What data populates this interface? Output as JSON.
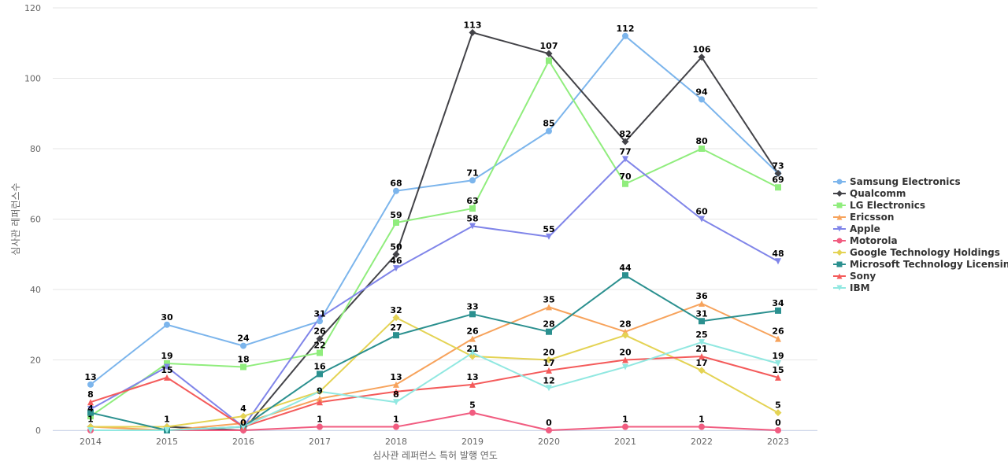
{
  "chart_data": {
    "type": "line",
    "title": "",
    "xlabel": "심사관 레퍼런스 특허 발행 연도",
    "ylabel": "심사관 레퍼런스수",
    "ylim": [
      0,
      120
    ],
    "yticks": [
      "0",
      "20",
      "40",
      "60",
      "80",
      "100",
      "120"
    ],
    "x": [
      "2014",
      "2015",
      "2016",
      "2017",
      "2018",
      "2019",
      "2020",
      "2021",
      "2022",
      "2023"
    ],
    "grid": true,
    "legend_position": "right",
    "series": [
      {
        "name": "Samsung Electronics",
        "color": "#7cb5ec",
        "marker": "circle",
        "values": [
          13,
          30,
          24,
          31,
          68,
          71,
          85,
          112,
          94,
          73
        ]
      },
      {
        "name": "Qualcomm",
        "color": "#434348",
        "marker": "diamond",
        "values": [
          1,
          1,
          0,
          26,
          50,
          113,
          107,
          82,
          106,
          73
        ]
      },
      {
        "name": "LG Electronics",
        "color": "#90ed7d",
        "marker": "square",
        "values": [
          4,
          19,
          18,
          22,
          59,
          63,
          105,
          70,
          80,
          69
        ]
      },
      {
        "name": "Ericsson",
        "color": "#f7a35c",
        "marker": "triangle",
        "values": [
          1,
          0,
          2,
          9,
          13,
          26,
          35,
          28,
          36,
          26
        ]
      },
      {
        "name": "Apple",
        "color": "#8085e9",
        "marker": "triangle-down",
        "values": [
          6,
          18,
          1,
          32,
          46,
          58,
          55,
          77,
          60,
          48
        ]
      },
      {
        "name": "Motorola",
        "color": "#f15c80",
        "marker": "circle",
        "values": [
          0,
          0,
          0,
          1,
          1,
          5,
          0,
          1,
          1,
          0
        ]
      },
      {
        "name": "Google Technology Holdings",
        "color": "#e4d354",
        "marker": "diamond",
        "values": [
          1,
          1,
          4,
          11,
          32,
          21,
          20,
          27,
          17,
          5
        ]
      },
      {
        "name": "Microsoft Technology Licensing",
        "color": "#2b908f",
        "marker": "square",
        "values": [
          5,
          0,
          1,
          16,
          27,
          33,
          28,
          44,
          31,
          34
        ]
      },
      {
        "name": "Sony",
        "color": "#f45b5b",
        "marker": "triangle",
        "values": [
          8,
          15,
          1,
          8,
          11,
          13,
          17,
          20,
          21,
          15
        ]
      },
      {
        "name": "IBM",
        "color": "#91e8e1",
        "marker": "triangle-down",
        "values": [
          0,
          0,
          1,
          11,
          8,
          22,
          12,
          18,
          25,
          19
        ]
      }
    ],
    "data_labels": [
      {
        "x": "2014",
        "value": "13",
        "series": "Samsung Electronics"
      },
      {
        "x": "2014",
        "value": "8",
        "series": "Sony"
      },
      {
        "x": "2014",
        "value": "4",
        "series": "LG Electronics"
      },
      {
        "x": "2014",
        "value": "1",
        "series": "Ericsson"
      },
      {
        "x": "2015",
        "value": "30",
        "series": "Samsung Electronics"
      },
      {
        "x": "2015",
        "value": "19",
        "series": "LG Electronics"
      },
      {
        "x": "2015",
        "value": "15",
        "series": "Sony"
      },
      {
        "x": "2015",
        "value": "1",
        "series": "Qualcomm"
      },
      {
        "x": "2016",
        "value": "24",
        "series": "Samsung Electronics"
      },
      {
        "x": "2016",
        "value": "18",
        "series": "LG Electronics"
      },
      {
        "x": "2016",
        "value": "4",
        "series": "Google Technology Holdings"
      },
      {
        "x": "2016",
        "value": "0",
        "series": "Qualcomm"
      },
      {
        "x": "2017",
        "value": "31",
        "series": "Samsung Electronics"
      },
      {
        "x": "2017",
        "value": "26",
        "series": "Qualcomm"
      },
      {
        "x": "2017",
        "value": "22",
        "series": "LG Electronics"
      },
      {
        "x": "2017",
        "value": "16",
        "series": "Microsoft Technology Licensing"
      },
      {
        "x": "2017",
        "value": "9",
        "series": "Ericsson"
      },
      {
        "x": "2017",
        "value": "1",
        "series": "Motorola"
      },
      {
        "x": "2018",
        "value": "68",
        "series": "Samsung Electronics"
      },
      {
        "x": "2018",
        "value": "59",
        "series": "LG Electronics"
      },
      {
        "x": "2018",
        "value": "50",
        "series": "Qualcomm"
      },
      {
        "x": "2018",
        "value": "46",
        "series": "Apple"
      },
      {
        "x": "2018",
        "value": "32",
        "series": "Google Technology Holdings"
      },
      {
        "x": "2018",
        "value": "27",
        "series": "Microsoft Technology Licensing"
      },
      {
        "x": "2018",
        "value": "13",
        "series": "Ericsson"
      },
      {
        "x": "2018",
        "value": "8",
        "series": "IBM"
      },
      {
        "x": "2018",
        "value": "1",
        "series": "Motorola"
      },
      {
        "x": "2019",
        "value": "113",
        "series": "Qualcomm"
      },
      {
        "x": "2019",
        "value": "71",
        "series": "Samsung Electronics"
      },
      {
        "x": "2019",
        "value": "63",
        "series": "LG Electronics"
      },
      {
        "x": "2019",
        "value": "58",
        "series": "Apple"
      },
      {
        "x": "2019",
        "value": "33",
        "series": "Microsoft Technology Licensing"
      },
      {
        "x": "2019",
        "value": "26",
        "series": "Ericsson"
      },
      {
        "x": "2019",
        "value": "21",
        "series": "Google Technology Holdings"
      },
      {
        "x": "2019",
        "value": "13",
        "series": "Sony"
      },
      {
        "x": "2019",
        "value": "5",
        "series": "Motorola"
      },
      {
        "x": "2020",
        "value": "107",
        "series": "Qualcomm"
      },
      {
        "x": "2020",
        "value": "85",
        "series": "Samsung Electronics"
      },
      {
        "x": "2020",
        "value": "55",
        "series": "Apple"
      },
      {
        "x": "2020",
        "value": "35",
        "series": "Ericsson"
      },
      {
        "x": "2020",
        "value": "28",
        "series": "Microsoft Technology Licensing"
      },
      {
        "x": "2020",
        "value": "20",
        "series": "Google Technology Holdings"
      },
      {
        "x": "2020",
        "value": "17",
        "series": "Sony"
      },
      {
        "x": "2020",
        "value": "12",
        "series": "IBM"
      },
      {
        "x": "2020",
        "value": "0",
        "series": "Motorola"
      },
      {
        "x": "2021",
        "value": "112",
        "series": "Samsung Electronics"
      },
      {
        "x": "2021",
        "value": "82",
        "series": "Qualcomm"
      },
      {
        "x": "2021",
        "value": "77",
        "series": "Apple"
      },
      {
        "x": "2021",
        "value": "70",
        "series": "LG Electronics"
      },
      {
        "x": "2021",
        "value": "44",
        "series": "Microsoft Technology Licensing"
      },
      {
        "x": "2021",
        "value": "28",
        "series": "Ericsson"
      },
      {
        "x": "2021",
        "value": "20",
        "series": "Sony"
      },
      {
        "x": "2021",
        "value": "1",
        "series": "Motorola"
      },
      {
        "x": "2022",
        "value": "106",
        "series": "Qualcomm"
      },
      {
        "x": "2022",
        "value": "94",
        "series": "Samsung Electronics"
      },
      {
        "x": "2022",
        "value": "80",
        "series": "LG Electronics"
      },
      {
        "x": "2022",
        "value": "60",
        "series": "Apple"
      },
      {
        "x": "2022",
        "value": "36",
        "series": "Ericsson"
      },
      {
        "x": "2022",
        "value": "31",
        "series": "Microsoft Technology Licensing"
      },
      {
        "x": "2022",
        "value": "25",
        "series": "IBM"
      },
      {
        "x": "2022",
        "value": "21",
        "series": "Sony"
      },
      {
        "x": "2022",
        "value": "17",
        "series": "Google Technology Holdings"
      },
      {
        "x": "2022",
        "value": "1",
        "series": "Motorola"
      },
      {
        "x": "2023",
        "value": "73",
        "series": "Samsung Electronics"
      },
      {
        "x": "2023",
        "value": "69",
        "series": "LG Electronics"
      },
      {
        "x": "2023",
        "value": "48",
        "series": "Apple"
      },
      {
        "x": "2023",
        "value": "34",
        "series": "Microsoft Technology Licensing"
      },
      {
        "x": "2023",
        "value": "26",
        "series": "Ericsson"
      },
      {
        "x": "2023",
        "value": "19",
        "series": "IBM"
      },
      {
        "x": "2023",
        "value": "15",
        "series": "Sony"
      },
      {
        "x": "2023",
        "value": "5",
        "series": "Google Technology Holdings"
      },
      {
        "x": "2023",
        "value": "0",
        "series": "Motorola"
      }
    ]
  }
}
